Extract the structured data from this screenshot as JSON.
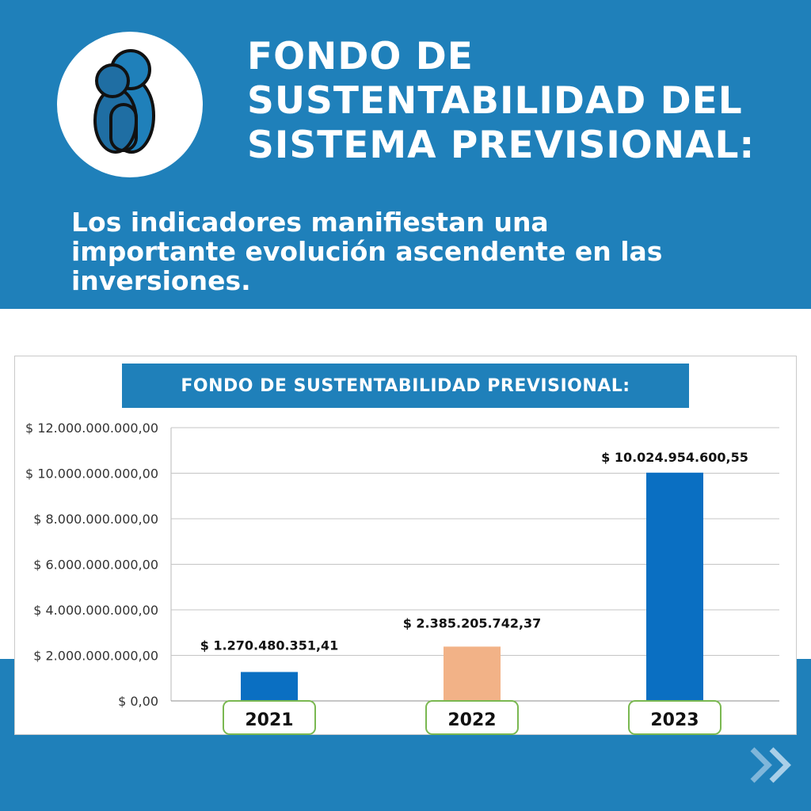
{
  "header": {
    "title_lines": [
      "FONDO DE",
      "SUSTENTABILIDAD DEL",
      "SISTEMA PREVISIONAL:"
    ],
    "subtitle_lines": [
      "Los indicadores manifiestan una",
      "importante evolución ascendente en las",
      "inversiones."
    ],
    "logo_icon": "people-group-icon"
  },
  "colors": {
    "band_blue": "#1f80ba",
    "bar_blue": "#0a6fc2",
    "bar_peach": "#f2b287",
    "label_box_border": "#7ab851"
  },
  "chart_data": {
    "type": "bar",
    "title": "FONDO DE SUSTENTABILIDAD PREVISIONAL:",
    "categories": [
      "2021",
      "2022",
      "2023"
    ],
    "values": [
      1270480351.41,
      2385205742.37,
      10024954600.55
    ],
    "value_labels": [
      "$ 1.270.480.351,41",
      "$ 2.385.205.742,37",
      "$ 10.024.954.600,55"
    ],
    "bar_colors": [
      "#0a6fc2",
      "#f2b287",
      "#0a6fc2"
    ],
    "ylim": [
      0,
      12000000000
    ],
    "y_ticks": [
      0,
      2000000000,
      4000000000,
      6000000000,
      8000000000,
      10000000000,
      12000000000
    ],
    "y_tick_labels": [
      "$ 0,00",
      "$ 2.000.000.000,00",
      "$ 4.000.000.000,00",
      "$ 6.000.000.000,00",
      "$ 8.000.000.000,00",
      "$ 10.000.000.000,00",
      "$ 12.000.000.000,00"
    ],
    "xlabel": "",
    "ylabel": "",
    "grid": true,
    "legend": false
  },
  "footer": {
    "next_icon": "double-chevron-right-icon"
  }
}
